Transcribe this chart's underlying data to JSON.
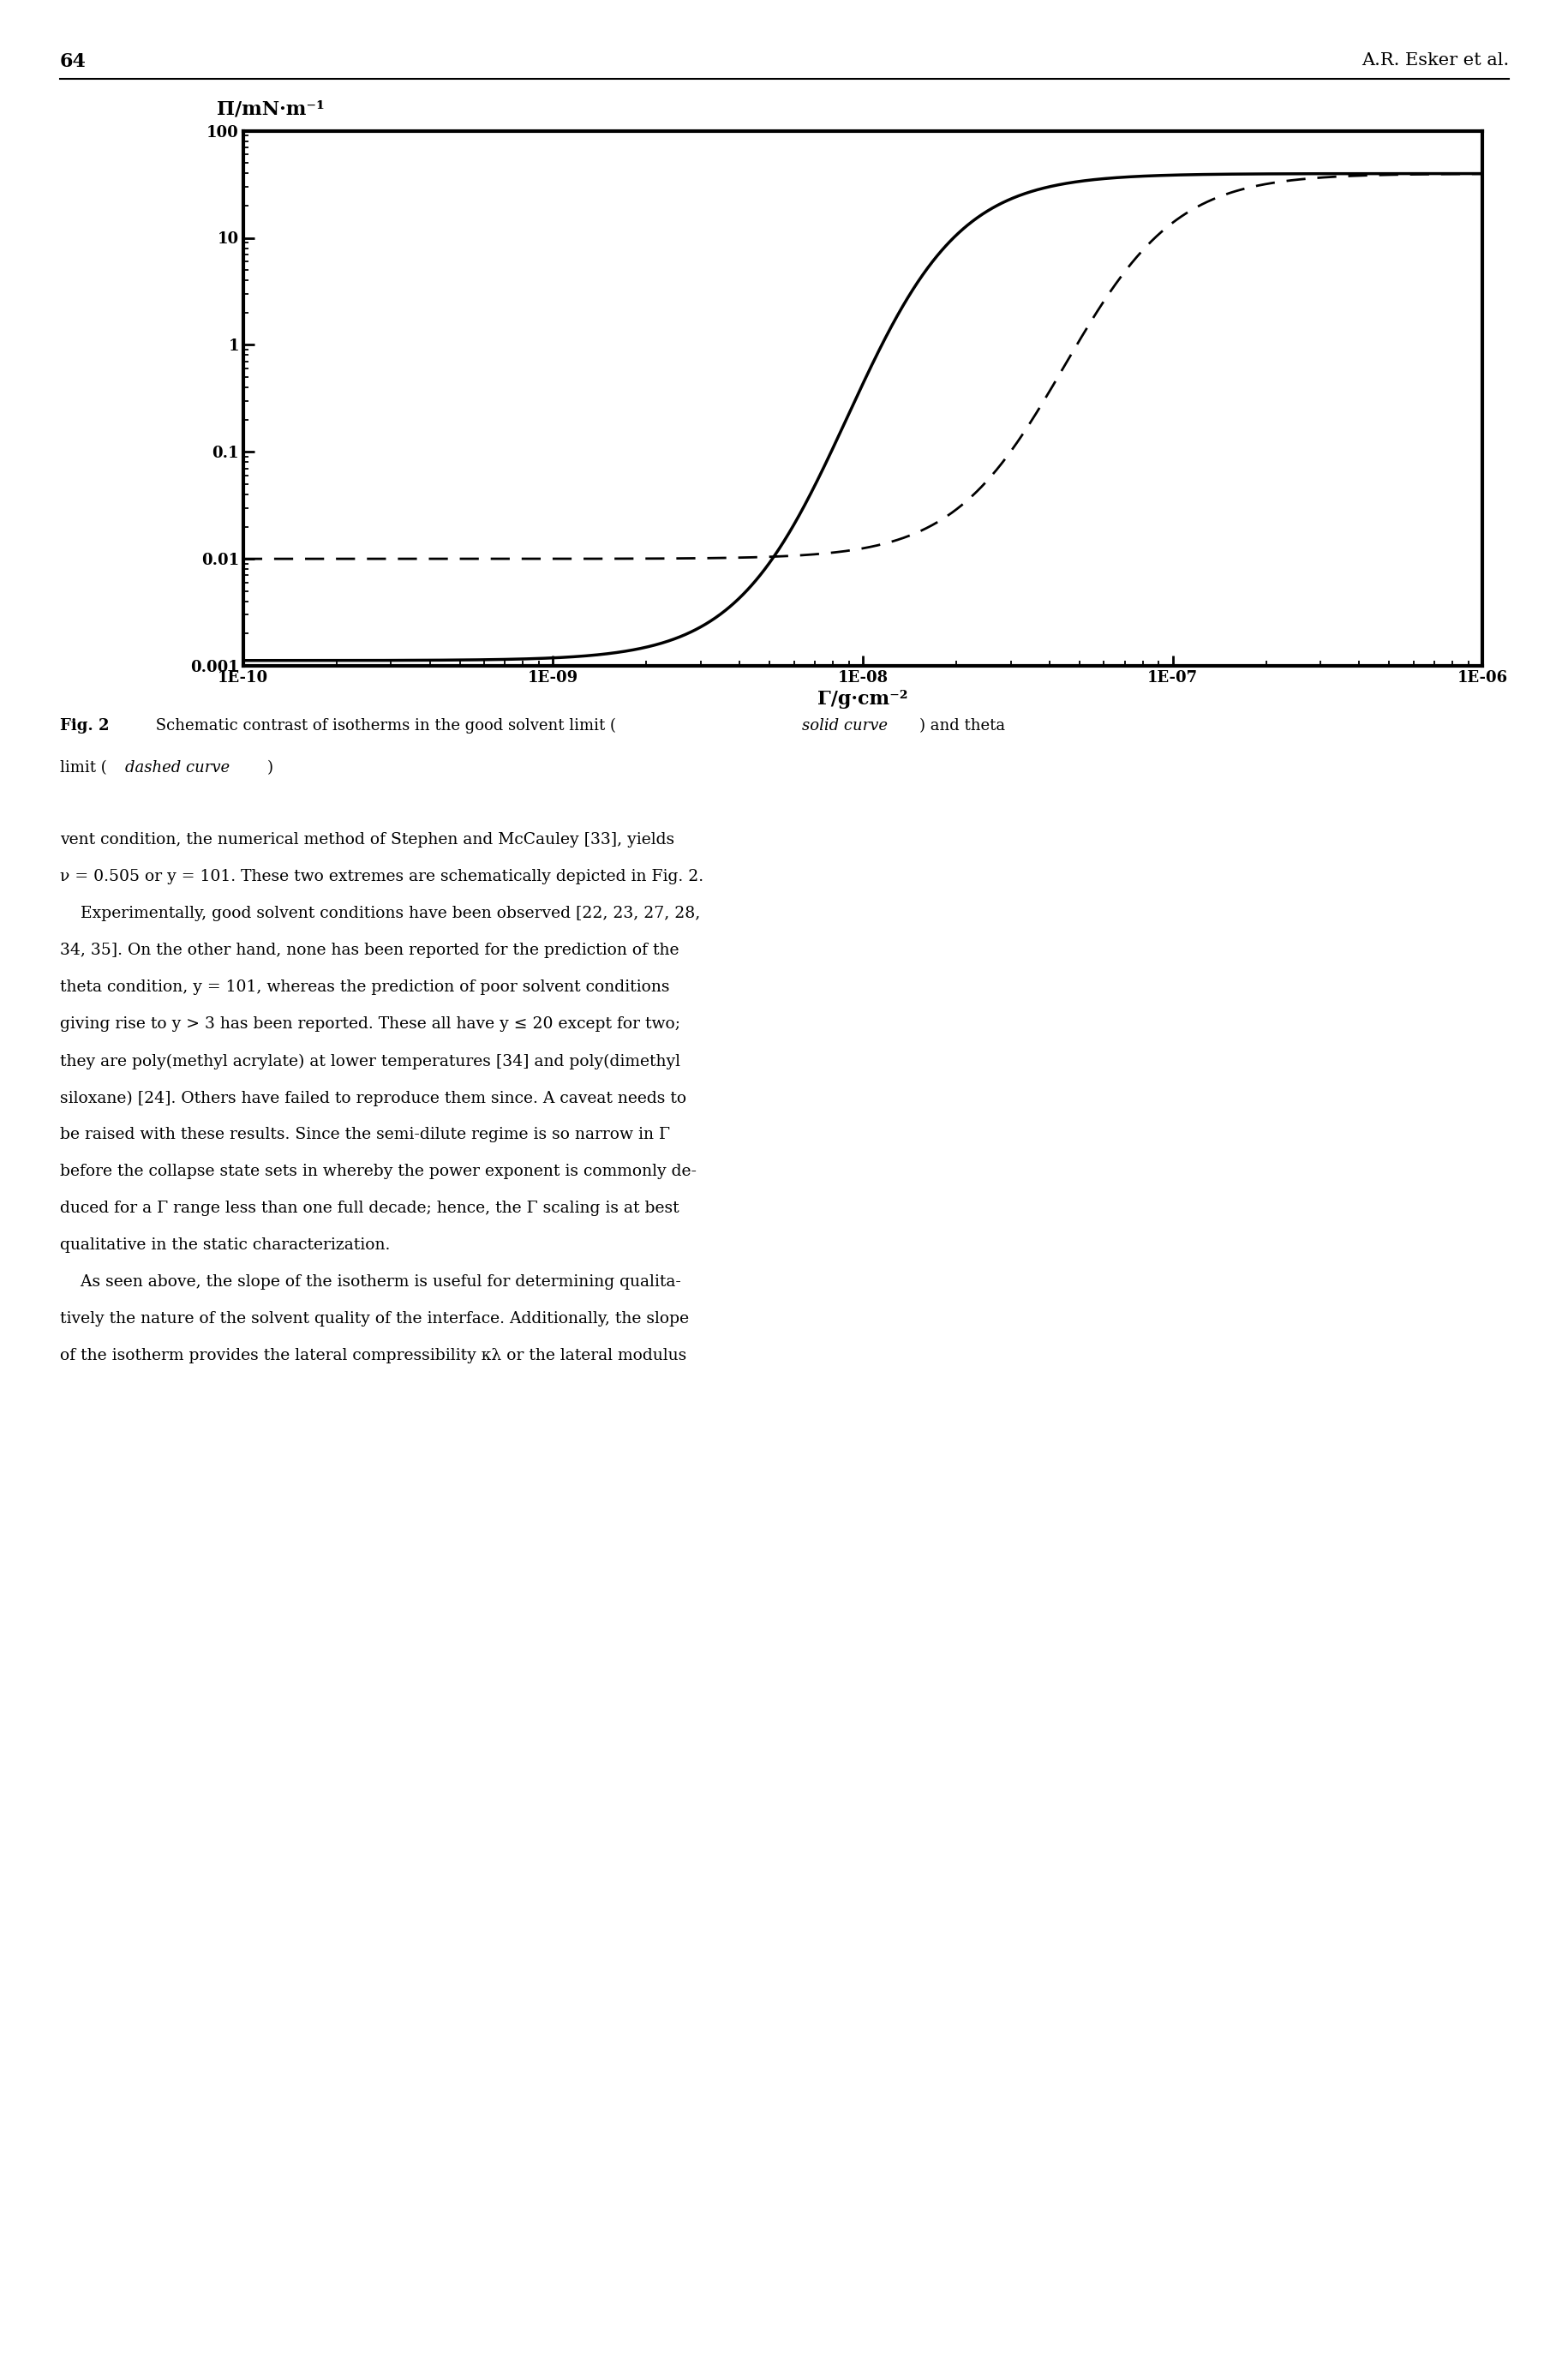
{
  "ylabel": "Π/mN·m⁻¹",
  "xlabel": "Γ/g·cm⁻²",
  "ylim": [
    0.001,
    100
  ],
  "background_color": "#ffffff",
  "page_number": "64",
  "author": "A.R. Esker et al.",
  "solid_mid": -8.05,
  "solid_steep": 5.5,
  "solid_ylow": -2.95,
  "solid_yhigh": 1.6,
  "dashed_mid": -7.35,
  "dashed_steep": 5.5,
  "dashed_ylow": -2.0,
  "dashed_yhigh": 1.6,
  "body_text_lines": [
    "vent condition, the numerical method of Stephen and McCauley [33], yields",
    "ν = 0.505 or y = 101. These two extremes are schematically depicted in Fig. 2.",
    "    Experimentally, good solvent conditions have been observed [22, 23, 27, 28,",
    "34, 35]. On the other hand, none has been reported for the prediction of the",
    "theta condition, y = 101, whereas the prediction of poor solvent conditions",
    "giving rise to y > 3 has been reported. These all have y ≤ 20 except for two;",
    "they are poly(methyl acrylate) at lower temperatures [34] and poly(dimethyl",
    "siloxane) [24]. Others have failed to reproduce them since. A caveat needs to",
    "be raised with these results. Since the semi-dilute regime is so narrow in Γ",
    "before the collapse state sets in whereby the power exponent is commonly de-",
    "duced for a Γ range less than one full decade; hence, the Γ scaling is at best",
    "qualitative in the static characterization.",
    "    As seen above, the slope of the isotherm is useful for determining qualita-",
    "tively the nature of the solvent quality of the interface. Additionally, the slope",
    "of the isotherm provides the lateral compressibility κλ or the lateral modulus"
  ]
}
